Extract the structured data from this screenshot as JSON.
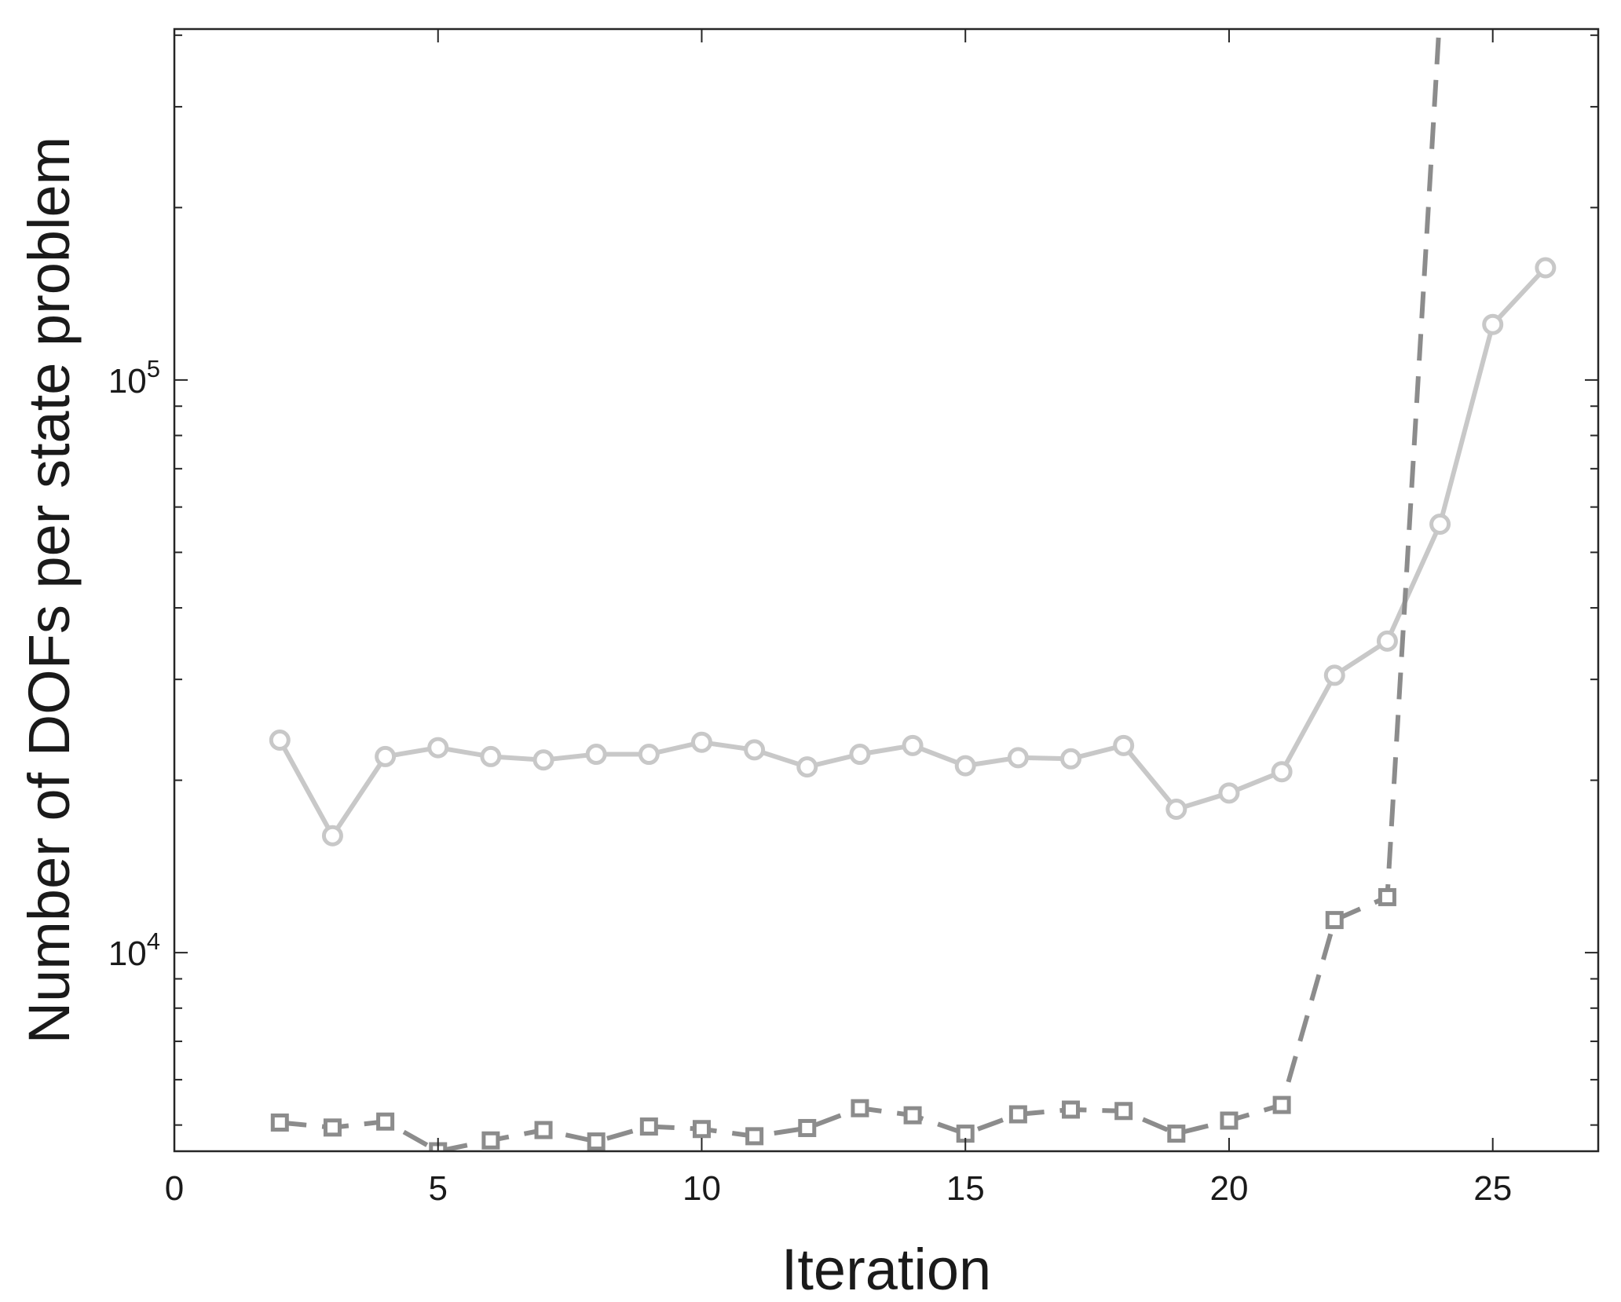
{
  "chart_data": {
    "type": "line",
    "title": "",
    "xlabel": "Iteration",
    "ylabel": "Number of DOFs per state problem",
    "xlim": [
      0,
      27
    ],
    "ylim": [
      4500,
      410000
    ],
    "yscale": "log",
    "grid": false,
    "x_ticks": [
      0,
      5,
      10,
      15,
      20,
      25
    ],
    "x_tick_labels": [
      "0",
      "5",
      "10",
      "15",
      "20",
      "25"
    ],
    "y_major_ticks": [
      10000,
      100000
    ],
    "y_tick_labels": [
      {
        "base": "10",
        "exp": "4"
      },
      {
        "base": "10",
        "exp": "5"
      }
    ],
    "y_minor_ticks": [
      5000,
      6000,
      7000,
      8000,
      9000,
      20000,
      30000,
      40000,
      50000,
      60000,
      70000,
      80000,
      90000,
      200000,
      300000,
      400000
    ],
    "series": [
      {
        "color": "#c8c8c8",
        "line_style": "solid",
        "marker": "circle",
        "x": [
          2,
          3,
          4,
          5,
          6,
          7,
          8,
          9,
          10,
          11,
          12,
          13,
          14,
          15,
          16,
          17,
          18,
          19,
          20,
          21,
          22,
          23,
          24,
          25,
          26
        ],
        "y": [
          23500,
          16000,
          22000,
          22800,
          22000,
          21700,
          22200,
          22200,
          23300,
          22600,
          21100,
          22200,
          23000,
          21200,
          21900,
          21800,
          23000,
          17800,
          19000,
          20700,
          30500,
          35000,
          56000,
          125000,
          157000
        ]
      },
      {
        "color": "#8c8c8c",
        "line_style": "dashed",
        "marker": "square",
        "x": [
          2,
          3,
          4,
          5,
          6,
          7,
          8,
          9,
          10,
          11,
          12,
          13,
          14,
          15,
          16,
          17,
          18,
          19,
          20,
          21,
          22,
          23,
          24
        ],
        "y": [
          5050,
          4950,
          5070,
          4500,
          4700,
          4900,
          4680,
          4970,
          4920,
          4780,
          4940,
          5350,
          5200,
          4830,
          5220,
          5320,
          5290,
          4830,
          5090,
          5420,
          11400,
          12500,
          440000
        ]
      }
    ]
  }
}
